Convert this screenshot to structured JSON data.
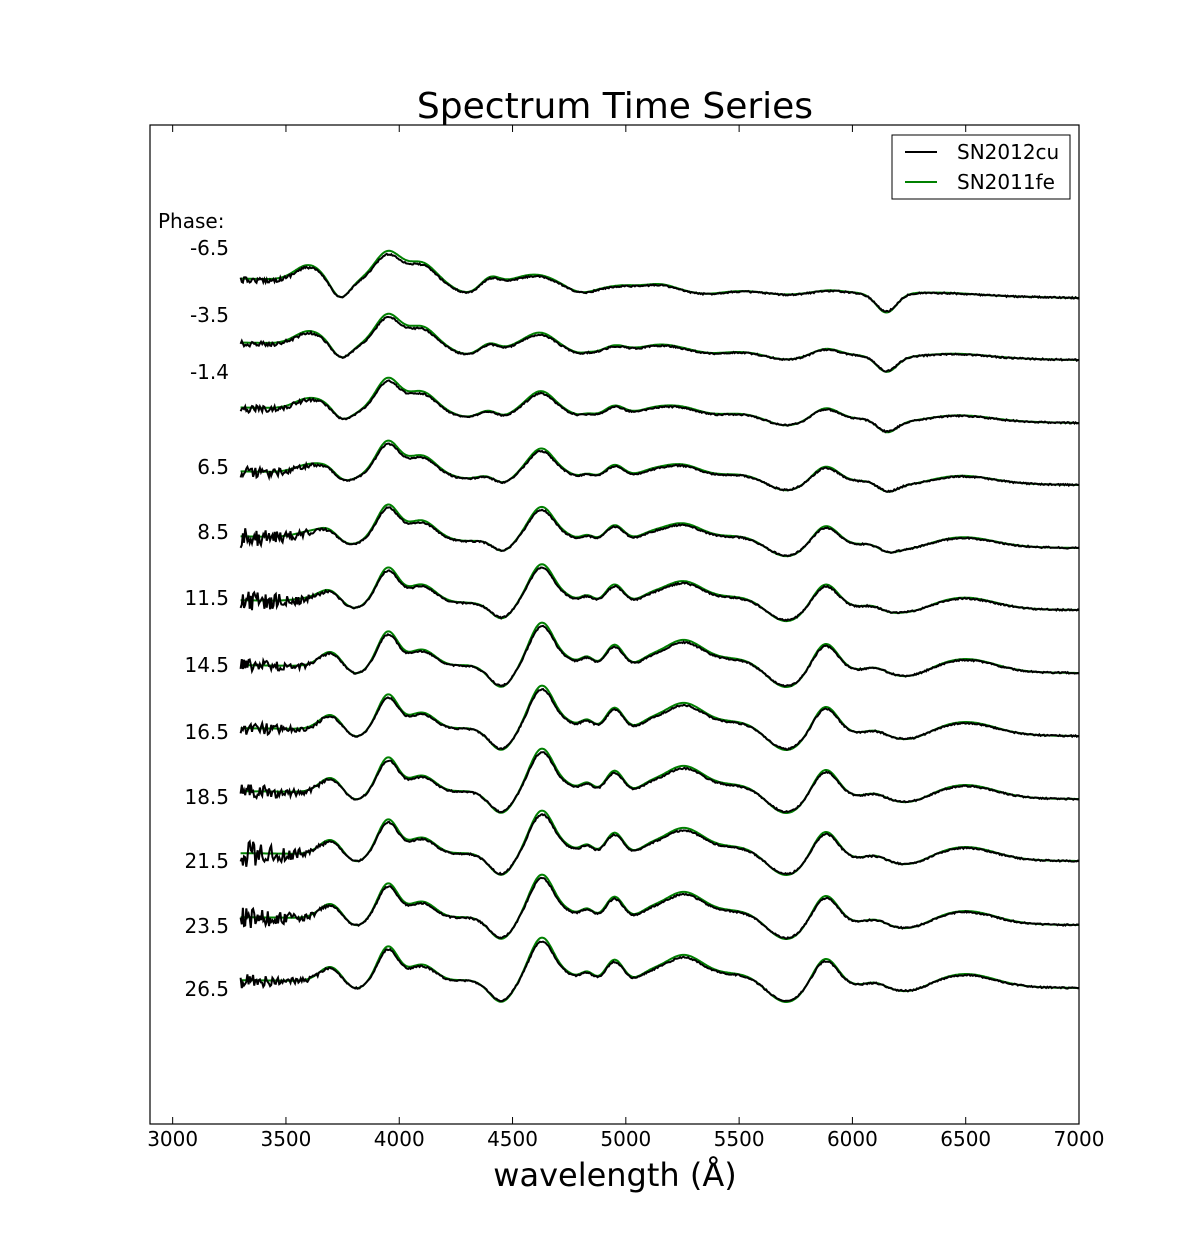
{
  "chart_data": {
    "type": "line",
    "title": "Spectrum Time Series",
    "xlabel": "wavelength (Å)",
    "ylabel": "",
    "xlim": [
      2900,
      7000
    ],
    "xticks": [
      3000,
      3500,
      4000,
      4500,
      5000,
      5500,
      6000,
      6500,
      7000
    ],
    "grid": false,
    "legend_placement": "top-right",
    "phase_header": "Phase:",
    "phases": [
      "-6.5",
      "-3.5",
      "-1.4",
      "6.5",
      "8.5",
      "11.5",
      "14.5",
      "16.5",
      "18.5",
      "21.5",
      "23.5",
      "26.5"
    ],
    "series": [
      {
        "name": "SN2012cu",
        "color": "#000000"
      },
      {
        "name": "SN2011fe",
        "color": "#008000"
      }
    ]
  }
}
